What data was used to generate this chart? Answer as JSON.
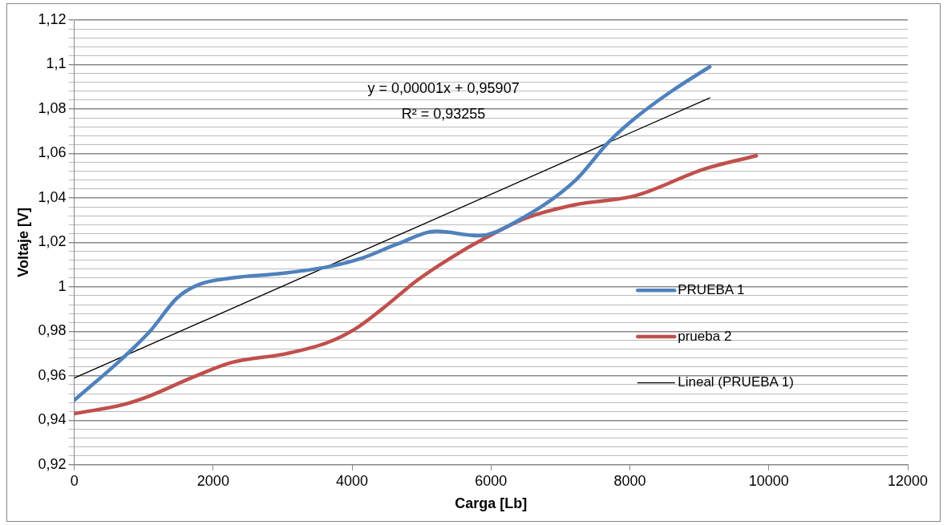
{
  "chart_data": {
    "type": "line",
    "xlabel": "Carga [Lb]",
    "ylabel": "Voltaje [V]",
    "xlim": [
      0,
      12000
    ],
    "xticks": [
      0,
      2000,
      4000,
      6000,
      8000,
      10000,
      12000
    ],
    "ylim": [
      0.92,
      1.12
    ],
    "yticks": [
      {
        "value": 0.92,
        "label": "0,92"
      },
      {
        "value": 0.924,
        "label": null
      },
      {
        "value": 0.928,
        "label": null
      },
      {
        "value": 0.932,
        "label": null
      },
      {
        "value": 0.936,
        "label": null
      },
      {
        "value": 0.94,
        "label": "0,94"
      },
      {
        "value": 0.944,
        "label": null
      },
      {
        "value": 0.948,
        "label": null
      },
      {
        "value": 0.952,
        "label": null
      },
      {
        "value": 0.956,
        "label": null
      },
      {
        "value": 0.96,
        "label": "0,96"
      },
      {
        "value": 0.964,
        "label": null
      },
      {
        "value": 0.968,
        "label": null
      },
      {
        "value": 0.972,
        "label": null
      },
      {
        "value": 0.976,
        "label": null
      },
      {
        "value": 0.98,
        "label": "0,98"
      },
      {
        "value": 0.984,
        "label": null
      },
      {
        "value": 0.988,
        "label": null
      },
      {
        "value": 0.992,
        "label": null
      },
      {
        "value": 0.996,
        "label": null
      },
      {
        "value": 1,
        "label": "1"
      },
      {
        "value": 1.004,
        "label": null
      },
      {
        "value": 1.008,
        "label": null
      },
      {
        "value": 1.012,
        "label": null
      },
      {
        "value": 1.016,
        "label": null
      },
      {
        "value": 1.02,
        "label": "1,02"
      },
      {
        "value": 1.024,
        "label": null
      },
      {
        "value": 1.028,
        "label": null
      },
      {
        "value": 1.032,
        "label": null
      },
      {
        "value": 1.036,
        "label": null
      },
      {
        "value": 1.04,
        "label": "1,04"
      },
      {
        "value": 1.044,
        "label": null
      },
      {
        "value": 1.048,
        "label": null
      },
      {
        "value": 1.052,
        "label": null
      },
      {
        "value": 1.056,
        "label": null
      },
      {
        "value": 1.06,
        "label": "1,06"
      },
      {
        "value": 1.064,
        "label": null
      },
      {
        "value": 1.068,
        "label": null
      },
      {
        "value": 1.072,
        "label": null
      },
      {
        "value": 1.076,
        "label": null
      },
      {
        "value": 1.08,
        "label": "1,08"
      },
      {
        "value": 1.084,
        "label": null
      },
      {
        "value": 1.088,
        "label": null
      },
      {
        "value": 1.092,
        "label": null
      },
      {
        "value": 1.096,
        "label": null
      },
      {
        "value": 1.1,
        "label": "1,1"
      },
      {
        "value": 1.104,
        "label": null
      },
      {
        "value": 1.108,
        "label": null
      },
      {
        "value": 1.112,
        "label": null
      },
      {
        "value": 1.116,
        "label": null
      },
      {
        "value": 1.12,
        "label": "1,12"
      }
    ],
    "grid": "y",
    "legend": "right",
    "marker": "none",
    "line_style": "solid",
    "annotations": [
      "y = 0,00001x + 0,95907",
      "R² = 0,93255"
    ],
    "series": [
      {
        "name": "PRUEBA 1",
        "color": "#4f81bd",
        "x": [
          0,
          700,
          1090,
          1480,
          1790,
          2270,
          2970,
          3650,
          4150,
          4630,
          5220,
          5810,
          6510,
          7220,
          7690,
          8080,
          8600,
          9150
        ],
        "values": [
          0.949,
          0.968,
          0.98,
          0.995,
          1.001,
          1.004,
          1.006,
          1.009,
          1.013,
          1.019,
          1.025,
          1.023,
          1.032,
          1.048,
          1.065,
          1.076,
          1.088,
          1.099
        ]
      },
      {
        "name": "prueba 2",
        "color": "#c0504d",
        "x": [
          0,
          700,
          1090,
          1680,
          2270,
          3060,
          3650,
          4040,
          4430,
          4940,
          5420,
          5920,
          6510,
          7220,
          8080,
          9070,
          9820
        ],
        "values": [
          0.943,
          0.947,
          0.951,
          0.959,
          0.966,
          0.97,
          0.975,
          0.981,
          0.99,
          1.003,
          1.013,
          1.022,
          1.031,
          1.037,
          1.041,
          1.053,
          1.059
        ]
      },
      {
        "name": "Lineal (PRUEBA 1)",
        "color": "#000000",
        "type": "line",
        "x": [
          0,
          9150
        ],
        "values": [
          0.959,
          1.085
        ]
      }
    ]
  }
}
